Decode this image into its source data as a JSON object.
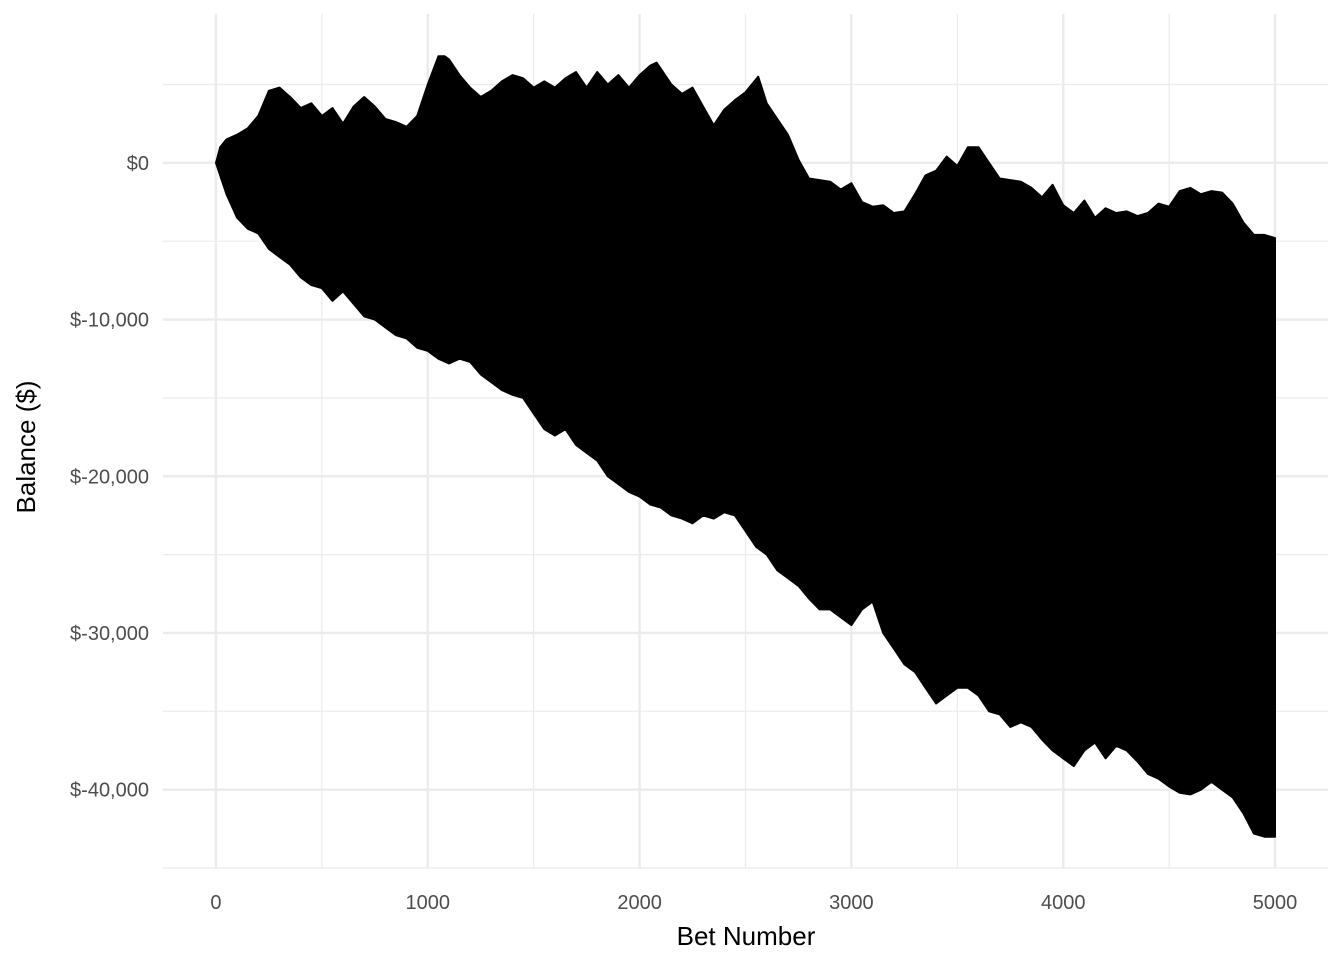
{
  "chart_data": {
    "type": "area",
    "title": "",
    "xlabel": "Bet Number",
    "ylabel": "Balance ($)",
    "xlim": [
      -250,
      5250
    ],
    "ylim": [
      -45000,
      9500
    ],
    "x_ticks": [
      0,
      1000,
      2000,
      3000,
      4000,
      5000
    ],
    "x_tick_labels": [
      "0",
      "1000",
      "2000",
      "3000",
      "4000",
      "5000"
    ],
    "y_ticks": [
      0,
      -10000,
      -20000,
      -30000,
      -40000
    ],
    "y_tick_labels": [
      "$0",
      "$-10,000",
      "$-20,000",
      "$-30,000",
      "$-40,000"
    ],
    "grid": true,
    "legend": "none",
    "fill_color": "#000000",
    "upper_envelope": {
      "x": [
        0,
        20,
        50,
        100,
        150,
        200,
        250,
        300,
        350,
        400,
        450,
        500,
        550,
        600,
        650,
        700,
        750,
        800,
        850,
        900,
        950,
        1000,
        1050,
        1080,
        1100,
        1150,
        1200,
        1250,
        1300,
        1350,
        1400,
        1450,
        1500,
        1550,
        1600,
        1650,
        1700,
        1750,
        1800,
        1850,
        1900,
        1950,
        2000,
        2050,
        2080,
        2100,
        2150,
        2200,
        2250,
        2300,
        2350,
        2400,
        2450,
        2500,
        2560,
        2600,
        2650,
        2700,
        2750,
        2800,
        2850,
        2900,
        2950,
        3000,
        3050,
        3100,
        3150,
        3200,
        3250,
        3300,
        3350,
        3400,
        3450,
        3500,
        3550,
        3600,
        3650,
        3700,
        3750,
        3800,
        3850,
        3900,
        3950,
        4000,
        4050,
        4100,
        4150,
        4200,
        4250,
        4300,
        4350,
        4400,
        4450,
        4500,
        4550,
        4600,
        4650,
        4700,
        4750,
        4800,
        4850,
        4900,
        4950,
        5000
      ],
      "y": [
        0,
        1000,
        1500,
        1800,
        2200,
        3000,
        4600,
        4800,
        4200,
        3500,
        3800,
        3000,
        3500,
        2500,
        3600,
        4200,
        3600,
        2800,
        2600,
        2300,
        3000,
        5000,
        6800,
        6800,
        6600,
        5600,
        4800,
        4200,
        4600,
        5200,
        5600,
        5400,
        4800,
        5200,
        4800,
        5400,
        5800,
        4800,
        5800,
        5000,
        5600,
        4800,
        5600,
        6200,
        6400,
        6000,
        5000,
        4400,
        4800,
        3600,
        2400,
        3400,
        4000,
        4500,
        5500,
        3800,
        2800,
        1800,
        200,
        -1000,
        -1100,
        -1200,
        -1700,
        -1300,
        -2500,
        -2800,
        -2700,
        -3200,
        -3100,
        -2000,
        -800,
        -500,
        400,
        -200,
        1000,
        1000,
        0,
        -1000,
        -1100,
        -1200,
        -1600,
        -2200,
        -1400,
        -2700,
        -3200,
        -2400,
        -3500,
        -2900,
        -3200,
        -3100,
        -3400,
        -3200,
        -2600,
        -2800,
        -1800,
        -1600,
        -2000,
        -1800,
        -1900,
        -2600,
        -3800,
        -4600,
        -4600,
        -4800
      ]
    },
    "lower_envelope": {
      "x": [
        0,
        50,
        100,
        150,
        200,
        250,
        300,
        350,
        400,
        450,
        500,
        550,
        600,
        650,
        700,
        750,
        800,
        850,
        900,
        950,
        1000,
        1050,
        1100,
        1150,
        1200,
        1250,
        1300,
        1350,
        1400,
        1450,
        1500,
        1550,
        1600,
        1650,
        1700,
        1750,
        1800,
        1850,
        1900,
        1950,
        2000,
        2050,
        2100,
        2150,
        2200,
        2250,
        2300,
        2350,
        2400,
        2450,
        2500,
        2550,
        2600,
        2650,
        2700,
        2750,
        2800,
        2850,
        2900,
        2950,
        3000,
        3050,
        3100,
        3150,
        3200,
        3250,
        3300,
        3350,
        3400,
        3450,
        3500,
        3550,
        3600,
        3650,
        3700,
        3750,
        3800,
        3850,
        3900,
        3950,
        4000,
        4050,
        4100,
        4150,
        4200,
        4250,
        4300,
        4350,
        4400,
        4450,
        4500,
        4550,
        4600,
        4650,
        4700,
        4750,
        4800,
        4850,
        4900,
        4950,
        5000
      ],
      "y": [
        0,
        -2000,
        -3500,
        -4200,
        -4500,
        -5500,
        -6000,
        -6500,
        -7300,
        -7800,
        -8000,
        -8800,
        -8200,
        -9000,
        -9800,
        -10000,
        -10500,
        -11000,
        -11200,
        -11800,
        -12000,
        -12500,
        -12800,
        -12500,
        -12700,
        -13500,
        -14000,
        -14500,
        -14800,
        -15000,
        -16000,
        -17000,
        -17400,
        -17000,
        -18000,
        -18500,
        -19000,
        -20000,
        -20500,
        -21000,
        -21300,
        -21800,
        -22000,
        -22500,
        -22700,
        -23000,
        -22500,
        -22700,
        -22300,
        -22500,
        -23500,
        -24500,
        -25000,
        -26000,
        -26500,
        -27000,
        -27800,
        -28500,
        -28500,
        -29000,
        -29500,
        -28500,
        -28000,
        -30000,
        -31000,
        -32000,
        -32500,
        -33500,
        -34500,
        -34000,
        -33500,
        -33500,
        -34000,
        -35000,
        -35200,
        -36000,
        -35700,
        -36000,
        -36800,
        -37500,
        -38000,
        -38500,
        -37500,
        -37000,
        -38000,
        -37200,
        -37500,
        -38200,
        -39000,
        -39300,
        -39800,
        -40200,
        -40300,
        -40000,
        -39500,
        -40000,
        -40500,
        -41500,
        -42800,
        -43000,
        -43000
      ]
    }
  }
}
